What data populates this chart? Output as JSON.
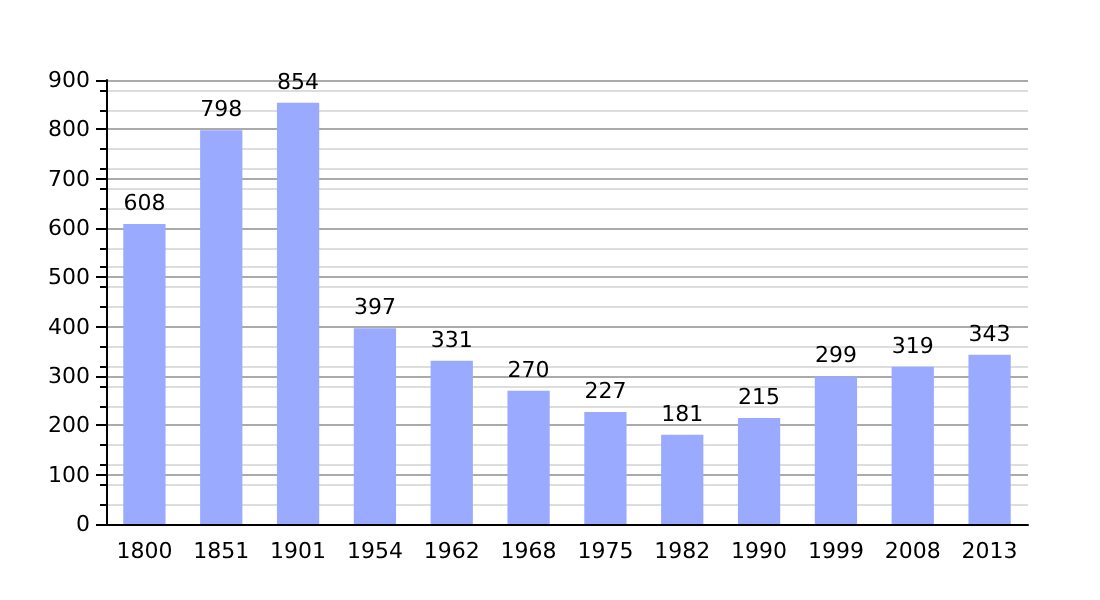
{
  "chart_data": {
    "type": "bar",
    "categories": [
      "1800",
      "1851",
      "1901",
      "1954",
      "1962",
      "1968",
      "1975",
      "1982",
      "1990",
      "1999",
      "2008",
      "2013"
    ],
    "values": [
      608,
      798,
      854,
      397,
      331,
      270,
      227,
      181,
      215,
      299,
      319,
      343
    ],
    "color": "#99aaff",
    "ylim": [
      0,
      900
    ],
    "yticks": [
      0,
      100,
      200,
      300,
      400,
      500,
      600,
      700,
      800,
      900
    ],
    "grid": "y",
    "data_labels": true
  }
}
